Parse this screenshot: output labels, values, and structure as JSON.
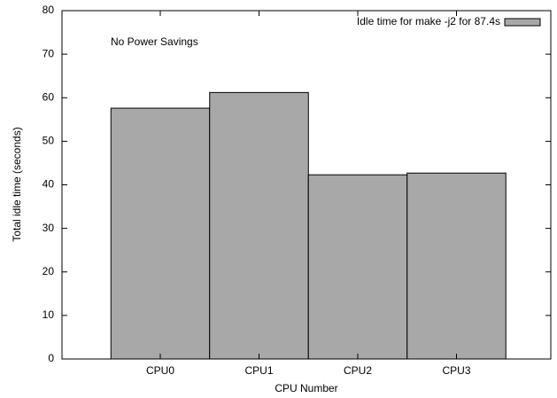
{
  "chart_data": {
    "type": "bar",
    "xlabel": "CPU Number",
    "ylabel": "Total idle time (seconds)",
    "annotation": "No Power Savings",
    "categories": [
      "CPU0",
      "CPU1",
      "CPU2",
      "CPU3"
    ],
    "series": [
      {
        "name": "Idle time for make -j2 for 87.4s",
        "color": "#a8a8a8",
        "values": [
          57.6,
          61.2,
          42.3,
          42.7
        ]
      }
    ],
    "ylim": [
      0,
      80
    ],
    "yticks": [
      0,
      10,
      20,
      30,
      40,
      50,
      60,
      70,
      80
    ],
    "legend": "top-right"
  }
}
